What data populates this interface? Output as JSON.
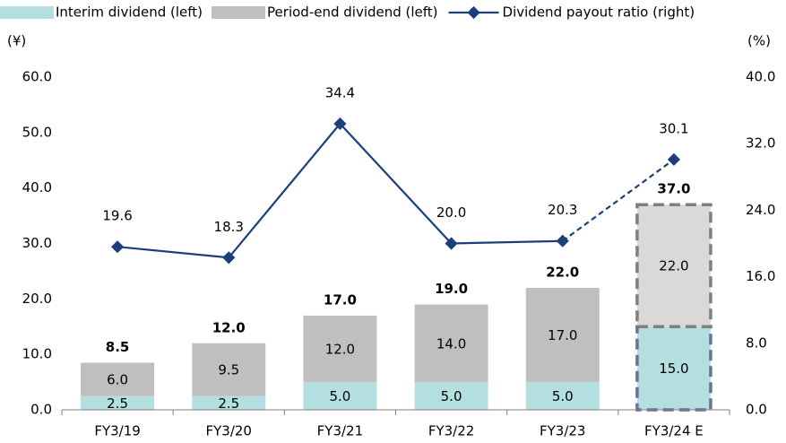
{
  "chart_data": {
    "type": "bar-line",
    "categories": [
      "FY3/19",
      "FY3/20",
      "FY3/21",
      "FY3/22",
      "FY3/23",
      "FY3/24 E"
    ],
    "series": [
      {
        "name": "Interim dividend (left)",
        "type": "bar",
        "color": "#b3dfe0",
        "values": [
          2.5,
          2.5,
          5,
          5,
          5,
          15
        ],
        "value_labels": [
          "2.5",
          "2.5",
          "5.0",
          "5.0",
          "5.0",
          "15.0"
        ]
      },
      {
        "name": "Period-end dividend (left)",
        "type": "bar",
        "color": "#bfbfbf",
        "forecast_color": "#d9d9d9",
        "values": [
          6,
          9.5,
          12,
          14,
          17,
          22
        ],
        "value_labels": [
          "6.0",
          "9.5",
          "12.0",
          "14.0",
          "17.0",
          "22.0"
        ]
      },
      {
        "name": "Dividend payout ratio (right)",
        "type": "line",
        "axis": "y2",
        "color": "#1b3f78",
        "values": [
          19.6,
          18.3,
          34.4,
          20.0,
          20.3,
          30.1
        ],
        "value_labels": [
          "19.6",
          "18.3",
          "34.4",
          "20.0",
          "20.3",
          "30.1"
        ]
      }
    ],
    "totals": [
      8.5,
      12,
      17,
      19,
      22,
      37
    ],
    "totals_labels": [
      "8.5",
      "12.0",
      "17.0",
      "19.0",
      "22.0",
      "37.0"
    ],
    "forecast_index": 5,
    "y_axis_label": "(¥)",
    "y2_axis_label": "(%)",
    "ylim": [
      0,
      60
    ],
    "yticks": [
      {
        "value": 0,
        "label": "0.0"
      },
      {
        "value": 10,
        "label": "10.0"
      },
      {
        "value": 20,
        "label": "20.0"
      },
      {
        "value": 30,
        "label": "30.0"
      },
      {
        "value": 40,
        "label": "40.0"
      },
      {
        "value": 50,
        "label": "50.0"
      },
      {
        "value": 60,
        "label": "60.0"
      }
    ],
    "y2lim": [
      0,
      40
    ],
    "y2ticks": [
      {
        "value": 0,
        "label": "0.0"
      },
      {
        "value": 8,
        "label": "8.0"
      },
      {
        "value": 16,
        "label": "16.0"
      },
      {
        "value": 24,
        "label": "24.0"
      },
      {
        "value": 32,
        "label": "32.0"
      },
      {
        "value": 40,
        "label": "40.0"
      }
    ],
    "legend": "top"
  }
}
